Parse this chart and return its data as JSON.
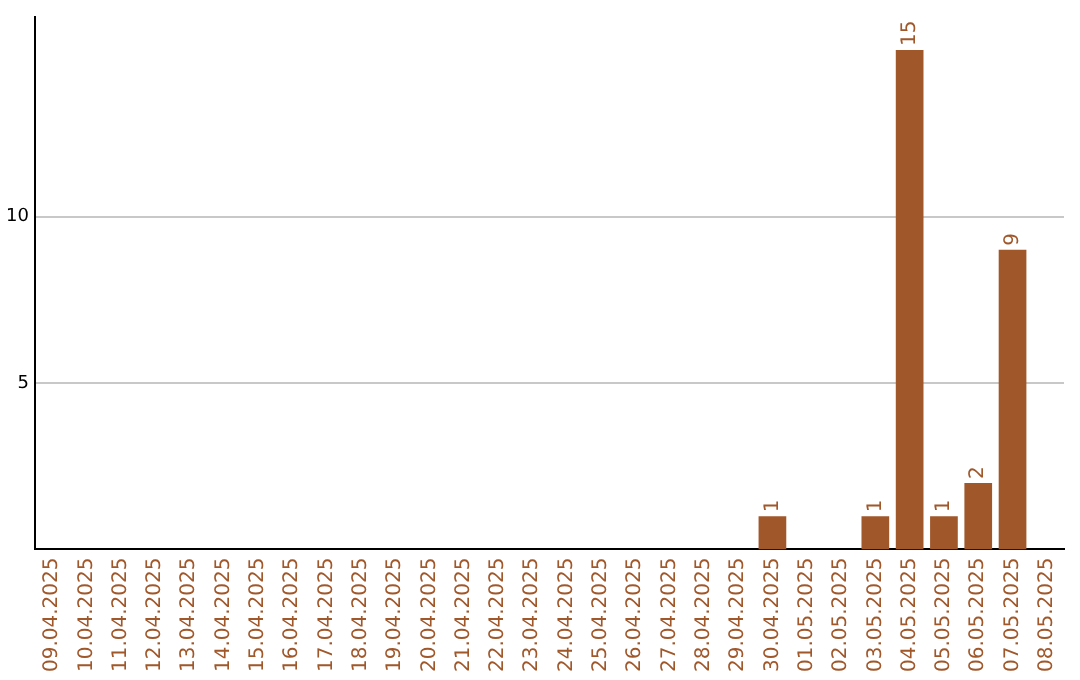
{
  "chart_data": {
    "type": "bar",
    "categories": [
      "09.04.2025",
      "10.04.2025",
      "11.04.2025",
      "12.04.2025",
      "13.04.2025",
      "14.04.2025",
      "15.04.2025",
      "16.04.2025",
      "17.04.2025",
      "18.04.2025",
      "19.04.2025",
      "20.04.2025",
      "21.04.2025",
      "22.04.2025",
      "23.04.2025",
      "24.04.2025",
      "25.04.2025",
      "26.04.2025",
      "27.04.2025",
      "28.04.2025",
      "29.04.2025",
      "30.04.2025",
      "01.05.2025",
      "02.05.2025",
      "03.05.2025",
      "04.05.2025",
      "05.05.2025",
      "06.05.2025",
      "07.05.2025",
      "08.05.2025"
    ],
    "values": [
      0,
      0,
      0,
      0,
      0,
      0,
      0,
      0,
      0,
      0,
      0,
      0,
      0,
      0,
      0,
      0,
      0,
      0,
      0,
      0,
      0,
      1,
      0,
      0,
      1,
      15,
      1,
      2,
      9,
      0
    ],
    "value_labels": [
      null,
      null,
      null,
      null,
      null,
      null,
      null,
      null,
      null,
      null,
      null,
      null,
      null,
      null,
      null,
      null,
      null,
      null,
      null,
      null,
      null,
      "1",
      null,
      null,
      "1",
      "15",
      "1",
      "2",
      "9",
      null
    ],
    "color": "#a0572a",
    "ylim": [
      0,
      16
    ],
    "yticks": [
      5,
      10
    ],
    "grid": "y",
    "legend": false
  }
}
